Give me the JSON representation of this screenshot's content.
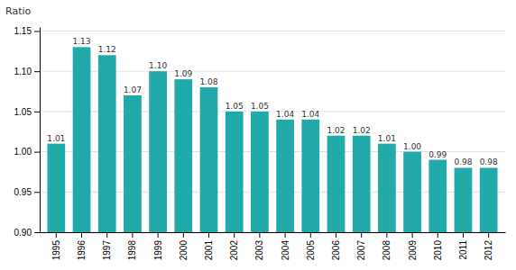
{
  "chart_data": {
    "type": "bar",
    "ylabel": "Ratio",
    "categories": [
      "1995",
      "1996",
      "1997",
      "1998",
      "1999",
      "2000",
      "2001",
      "2002",
      "2003",
      "2004",
      "2005",
      "2006",
      "2007",
      "2008",
      "2009",
      "2010",
      "2011",
      "2012"
    ],
    "values": [
      1.01,
      1.13,
      1.12,
      1.07,
      1.1,
      1.09,
      1.08,
      1.05,
      1.05,
      1.04,
      1.04,
      1.02,
      1.02,
      1.01,
      1.0,
      0.99,
      0.98,
      0.98
    ],
    "value_labels": [
      "1.01",
      "1.13",
      "1.12",
      "1.07",
      "1.10",
      "1.09",
      "1.08",
      "1.05",
      "1.05",
      "1.04",
      "1.04",
      "1.02",
      "1.02",
      "1.01",
      "1.00",
      "0.99",
      "0.98",
      "0.98"
    ],
    "color": "#22AAAA",
    "ylim": [
      0.9,
      1.155
    ],
    "yticks": [
      {
        "value": 0.9,
        "label": "0.90"
      },
      0.95,
      {
        "value": 1.0,
        "label": "1.00"
      },
      1.05,
      {
        "value": 1.1,
        "label": "1.10"
      },
      1.15
    ],
    "grid": true,
    "data_labels": true
  }
}
